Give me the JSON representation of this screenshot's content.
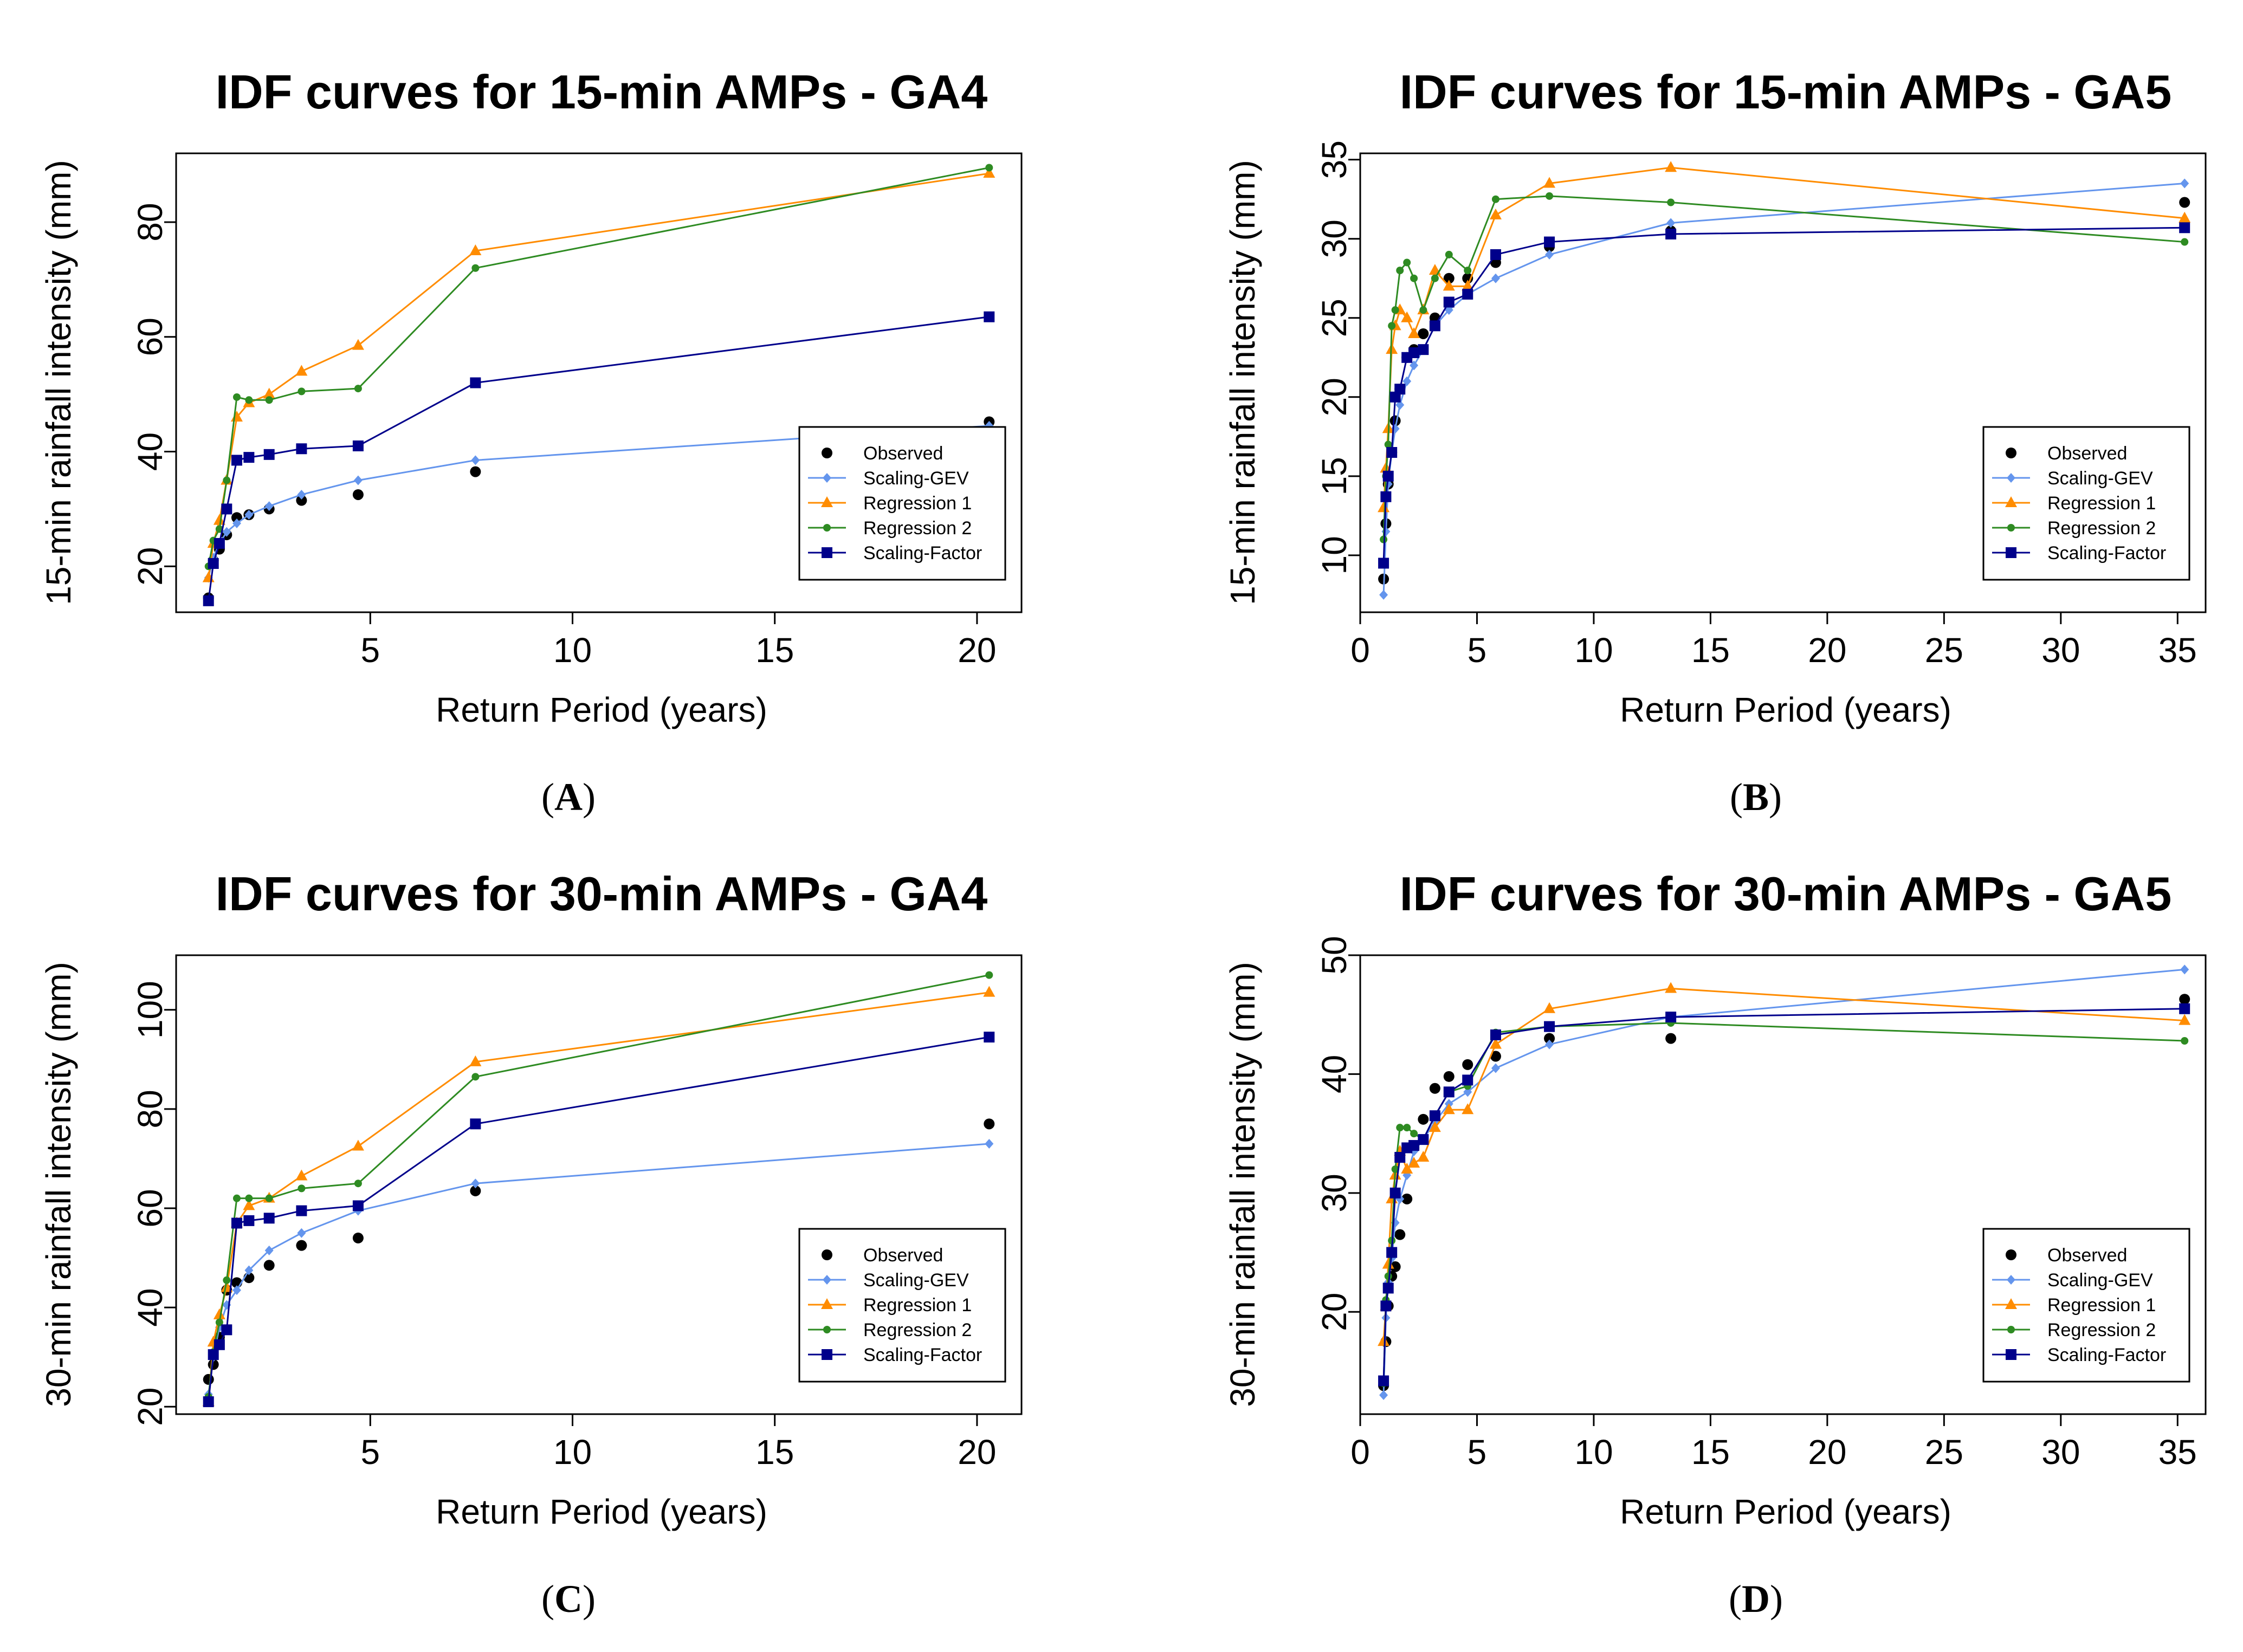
{
  "colors": {
    "Observed": "#000000",
    "Scaling-GEV": "#6495ED",
    "Regression 1": "#FF8C00",
    "Regression 2": "#2E8B22",
    "Scaling-Factor": "#00008B"
  },
  "chart_data": [
    {
      "type": "line",
      "title": "IDF curves for 15-min AMPs - GA4",
      "caption_letter": "A",
      "xlabel": "Return Period (years)",
      "ylabel": "15-min rainfall intensity (mm)",
      "xlim": [
        0.2,
        21.1
      ],
      "ylim": [
        12,
        92
      ],
      "xticks": [
        5,
        10,
        15,
        20
      ],
      "yticks": [
        20,
        40,
        60,
        80
      ],
      "legend": [
        "Observed",
        "Scaling-GEV",
        "Regression 1",
        "Regression 2",
        "Scaling-Factor"
      ],
      "legend_position": "bottom-right",
      "series": [
        {
          "name": "Observed",
          "marker": "circle",
          "line": false,
          "x": [
            1.0,
            1.12,
            1.27,
            1.45,
            1.7,
            2.0,
            2.5,
            3.3,
            4.7,
            7.6,
            20.3
          ],
          "y": [
            14.5,
            21.0,
            23.0,
            25.5,
            28.5,
            29.0,
            30.0,
            31.5,
            32.5,
            36.5,
            45.2
          ]
        },
        {
          "name": "Scaling-GEV",
          "marker": "diamond",
          "line": true,
          "x": [
            1.0,
            1.12,
            1.27,
            1.45,
            1.7,
            2.0,
            2.5,
            3.3,
            4.7,
            7.6,
            20.3
          ],
          "y": [
            18.0,
            21.5,
            24.0,
            26.0,
            27.5,
            29.0,
            30.5,
            32.5,
            35.0,
            38.5,
            44.5
          ]
        },
        {
          "name": "Regression 1",
          "marker": "triangle",
          "line": true,
          "x": [
            1.0,
            1.12,
            1.27,
            1.45,
            1.7,
            2.0,
            2.5,
            3.3,
            4.7,
            7.6,
            20.3
          ],
          "y": [
            18.0,
            24.0,
            28.0,
            35.0,
            46.0,
            48.5,
            50.0,
            54.0,
            58.5,
            75.0,
            88.5
          ]
        },
        {
          "name": "Regression 2",
          "marker": "circle-small",
          "line": true,
          "x": [
            1.0,
            1.12,
            1.27,
            1.45,
            1.7,
            2.0,
            2.5,
            3.3,
            4.7,
            7.6,
            20.3
          ],
          "y": [
            20.0,
            24.5,
            26.5,
            35.0,
            49.5,
            49.0,
            49.0,
            50.5,
            51.0,
            72.0,
            89.5
          ]
        },
        {
          "name": "Scaling-Factor",
          "marker": "square",
          "line": true,
          "x": [
            1.0,
            1.12,
            1.27,
            1.45,
            1.7,
            2.0,
            2.5,
            3.3,
            4.7,
            7.6,
            20.3
          ],
          "y": [
            14.0,
            20.5,
            24.0,
            30.0,
            38.5,
            39.0,
            39.5,
            40.5,
            41.0,
            52.0,
            63.5
          ]
        }
      ]
    },
    {
      "type": "line",
      "title": "IDF curves for 15-min AMPs - GA5",
      "caption_letter": "B",
      "xlabel": "Return Period (years)",
      "ylabel": "15-min rainfall intensity (mm)",
      "xlim": [
        0,
        36.2
      ],
      "ylim": [
        6.4,
        35.4
      ],
      "xticks": [
        0,
        5,
        10,
        15,
        20,
        25,
        30,
        35
      ],
      "yticks": [
        10,
        15,
        20,
        25,
        30,
        35
      ],
      "legend": [
        "Observed",
        "Scaling-GEV",
        "Regression 1",
        "Regression 2",
        "Scaling-Factor"
      ],
      "legend_position": "bottom-right",
      "series": [
        {
          "name": "Observed",
          "marker": "circle",
          "line": false,
          "x": [
            1.0,
            1.1,
            1.2,
            1.35,
            1.5,
            1.7,
            2.0,
            2.3,
            2.7,
            3.2,
            3.8,
            4.6,
            5.8,
            8.1,
            13.3,
            35.3
          ],
          "y": [
            8.5,
            12.0,
            14.5,
            16.5,
            18.5,
            20.5,
            22.5,
            23.0,
            24.0,
            25.0,
            27.5,
            27.5,
            28.5,
            29.5,
            30.5,
            32.3
          ]
        },
        {
          "name": "Scaling-GEV",
          "marker": "diamond",
          "line": true,
          "x": [
            1.0,
            1.1,
            1.2,
            1.35,
            1.5,
            1.7,
            2.0,
            2.3,
            2.7,
            3.2,
            3.8,
            4.6,
            5.8,
            8.1,
            13.3,
            35.3
          ],
          "y": [
            7.5,
            11.5,
            14.5,
            16.5,
            18.0,
            19.5,
            21.0,
            22.0,
            23.0,
            24.5,
            25.5,
            26.5,
            27.5,
            29.0,
            31.0,
            33.5
          ]
        },
        {
          "name": "Regression 1",
          "marker": "triangle",
          "line": true,
          "x": [
            1.0,
            1.1,
            1.2,
            1.35,
            1.5,
            1.7,
            2.0,
            2.3,
            2.7,
            3.2,
            3.8,
            4.6,
            5.8,
            8.1,
            13.3,
            35.3
          ],
          "y": [
            13.0,
            15.5,
            18.0,
            23.0,
            24.5,
            25.5,
            25.0,
            24.0,
            25.5,
            28.0,
            27.0,
            27.0,
            31.5,
            33.5,
            34.5,
            31.3
          ]
        },
        {
          "name": "Regression 2",
          "marker": "circle-small",
          "line": true,
          "x": [
            1.0,
            1.1,
            1.2,
            1.35,
            1.5,
            1.7,
            2.0,
            2.3,
            2.7,
            3.2,
            3.8,
            4.6,
            5.8,
            8.1,
            13.3,
            35.3
          ],
          "y": [
            11.0,
            15.0,
            17.0,
            24.5,
            25.5,
            28.0,
            28.5,
            27.5,
            25.5,
            27.5,
            29.0,
            28.0,
            32.5,
            32.7,
            32.3,
            29.8
          ]
        },
        {
          "name": "Scaling-Factor",
          "marker": "square",
          "line": true,
          "x": [
            1.0,
            1.1,
            1.2,
            1.35,
            1.5,
            1.7,
            2.0,
            2.3,
            2.7,
            3.2,
            3.8,
            4.6,
            5.8,
            8.1,
            13.3,
            35.3
          ],
          "y": [
            9.5,
            13.7,
            15.0,
            16.5,
            20.0,
            20.5,
            22.5,
            22.8,
            23.0,
            24.5,
            26.0,
            26.5,
            29.0,
            29.8,
            30.3,
            30.7
          ]
        }
      ]
    },
    {
      "type": "line",
      "title": "IDF curves for 30-min AMPs - GA4",
      "caption_letter": "C",
      "xlabel": "Return Period (years)",
      "ylabel": "30-min rainfall intensity (mm)",
      "xlim": [
        0.2,
        21.1
      ],
      "ylim": [
        18.5,
        111
      ],
      "xticks": [
        5,
        10,
        15,
        20
      ],
      "yticks": [
        20,
        40,
        60,
        80,
        100
      ],
      "legend": [
        "Observed",
        "Scaling-GEV",
        "Regression 1",
        "Regression 2",
        "Scaling-Factor"
      ],
      "legend_position": "bottom-right",
      "series": [
        {
          "name": "Observed",
          "marker": "circle",
          "line": false,
          "x": [
            1.0,
            1.12,
            1.27,
            1.45,
            1.7,
            2.0,
            2.5,
            3.3,
            4.7,
            7.6,
            20.3
          ],
          "y": [
            25.5,
            28.5,
            34.0,
            43.5,
            45.0,
            46.0,
            48.5,
            52.5,
            54.0,
            63.5,
            77.0
          ]
        },
        {
          "name": "Scaling-GEV",
          "marker": "diamond",
          "line": true,
          "x": [
            1.0,
            1.12,
            1.27,
            1.45,
            1.7,
            2.0,
            2.5,
            3.3,
            4.7,
            7.6,
            20.3
          ],
          "y": [
            22.5,
            30.0,
            36.0,
            40.5,
            43.5,
            47.5,
            51.5,
            55.0,
            59.5,
            65.0,
            73.0
          ]
        },
        {
          "name": "Regression 1",
          "marker": "triangle",
          "line": true,
          "x": [
            1.0,
            1.12,
            1.27,
            1.45,
            1.7,
            2.0,
            2.5,
            3.3,
            4.7,
            7.6,
            20.3
          ],
          "y": [
            21.0,
            33.0,
            38.5,
            44.0,
            57.0,
            60.5,
            62.0,
            66.5,
            72.5,
            89.5,
            103.5
          ]
        },
        {
          "name": "Regression 2",
          "marker": "circle-small",
          "line": true,
          "x": [
            1.0,
            1.12,
            1.27,
            1.45,
            1.7,
            2.0,
            2.5,
            3.3,
            4.7,
            7.6,
            20.3
          ],
          "y": [
            22.0,
            31.0,
            37.0,
            45.5,
            62.0,
            62.0,
            62.0,
            64.0,
            65.0,
            86.5,
            107.0
          ]
        },
        {
          "name": "Scaling-Factor",
          "marker": "square",
          "line": true,
          "x": [
            1.0,
            1.12,
            1.27,
            1.45,
            1.7,
            2.0,
            2.5,
            3.3,
            4.7,
            7.6,
            20.3
          ],
          "y": [
            21.0,
            30.5,
            32.5,
            35.5,
            57.0,
            57.5,
            58.0,
            59.5,
            60.5,
            77.0,
            94.5
          ]
        }
      ]
    },
    {
      "type": "line",
      "title": "IDF curves for 30-min AMPs - GA5",
      "caption_letter": "D",
      "xlabel": "Return Period (years)",
      "ylabel": "30-min rainfall intensity (mm)",
      "xlim": [
        0,
        36.2
      ],
      "ylim": [
        11.4,
        50
      ],
      "xticks": [
        0,
        5,
        10,
        15,
        20,
        25,
        30,
        35
      ],
      "yticks": [
        20,
        30,
        40,
        50
      ],
      "legend": [
        "Observed",
        "Scaling-GEV",
        "Regression 1",
        "Regression 2",
        "Scaling-Factor"
      ],
      "legend_position": "bottom-right",
      "series": [
        {
          "name": "Observed",
          "marker": "circle",
          "line": false,
          "x": [
            1.0,
            1.1,
            1.2,
            1.35,
            1.5,
            1.7,
            2.0,
            2.3,
            2.7,
            3.2,
            3.8,
            4.6,
            5.8,
            8.1,
            13.3,
            35.3
          ],
          "y": [
            13.8,
            17.5,
            20.5,
            23.0,
            23.8,
            26.5,
            29.5,
            33.8,
            36.2,
            38.8,
            39.8,
            40.8,
            41.5,
            43.0,
            43.0,
            46.3
          ]
        },
        {
          "name": "Scaling-GEV",
          "marker": "diamond",
          "line": true,
          "x": [
            1.0,
            1.1,
            1.2,
            1.35,
            1.5,
            1.7,
            2.0,
            2.3,
            2.7,
            3.2,
            3.8,
            4.6,
            5.8,
            8.1,
            13.3,
            35.3
          ],
          "y": [
            13.0,
            19.5,
            22.5,
            24.5,
            27.5,
            29.5,
            31.5,
            33.5,
            34.5,
            36.0,
            37.5,
            38.5,
            40.5,
            42.5,
            44.8,
            48.8
          ]
        },
        {
          "name": "Regression 1",
          "marker": "triangle",
          "line": true,
          "x": [
            1.0,
            1.1,
            1.2,
            1.35,
            1.5,
            1.7,
            2.0,
            2.3,
            2.7,
            3.2,
            3.8,
            4.6,
            5.8,
            8.1,
            13.3,
            35.3
          ],
          "y": [
            17.5,
            20.5,
            24.0,
            29.5,
            31.5,
            33.5,
            32.0,
            32.5,
            33.0,
            35.5,
            37.0,
            37.0,
            42.5,
            45.5,
            47.2,
            44.5
          ]
        },
        {
          "name": "Regression 2",
          "marker": "circle-small",
          "line": true,
          "x": [
            1.0,
            1.1,
            1.2,
            1.35,
            1.5,
            1.7,
            2.0,
            2.3,
            2.7,
            3.2,
            3.8,
            4.6,
            5.8,
            8.1,
            13.3,
            35.3
          ],
          "y": [
            14.0,
            21.0,
            23.0,
            26.0,
            32.0,
            35.5,
            35.5,
            35.0,
            34.5,
            36.5,
            38.5,
            39.0,
            43.5,
            44.0,
            44.3,
            42.8
          ]
        },
        {
          "name": "Scaling-Factor",
          "marker": "square",
          "line": true,
          "x": [
            1.0,
            1.1,
            1.2,
            1.35,
            1.5,
            1.7,
            2.0,
            2.3,
            2.7,
            3.2,
            3.8,
            4.6,
            5.8,
            8.1,
            13.3,
            35.3
          ],
          "y": [
            14.2,
            20.5,
            22.0,
            25.0,
            30.0,
            33.0,
            33.8,
            34.0,
            34.5,
            36.5,
            38.5,
            39.5,
            43.3,
            44.0,
            44.8,
            45.5
          ]
        }
      ]
    }
  ]
}
